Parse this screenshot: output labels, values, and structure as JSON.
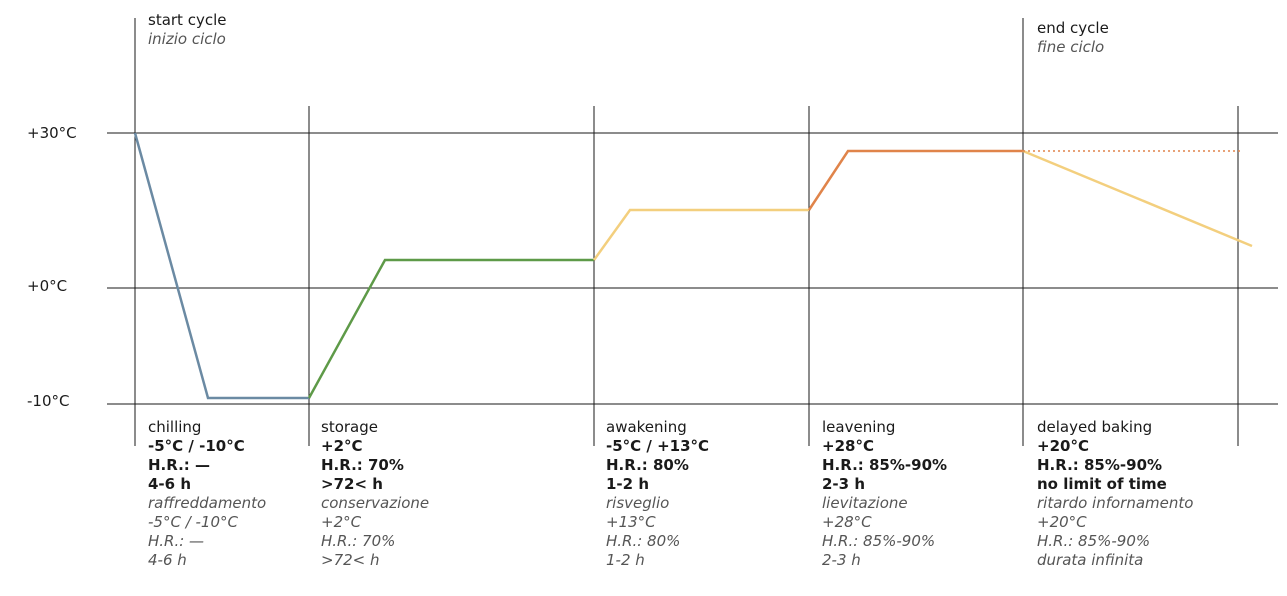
{
  "markers": {
    "start": {
      "title": "start cycle",
      "subtitle": "inizio ciclo"
    },
    "end": {
      "title": "end cycle",
      "subtitle": "fine ciclo"
    }
  },
  "y_axis": {
    "labels": [
      "+30°C",
      "+0°C",
      "-10°C"
    ]
  },
  "phases": [
    {
      "name": "chilling",
      "temp": "-5°C / -10°C",
      "hr": "H.R.: —",
      "time": "4-6 h",
      "it_name": "raffreddamento",
      "it_temp": "-5°C / -10°C",
      "it_hr": "H.R.: —",
      "it_time": "4-6 h",
      "color": "#6b8aa3"
    },
    {
      "name": "storage",
      "temp": "+2°C",
      "hr": "H.R.: 70%",
      "time": ">72< h",
      "it_name": "conservazione",
      "it_temp": "+2°C",
      "it_hr": "H.R.: 70%",
      "it_time": ">72< h",
      "color": "#5e9a48"
    },
    {
      "name": "awakening",
      "temp": "-5°C / +13°C",
      "hr": "H.R.: 80%",
      "time": "1-2 h",
      "it_name": "risveglio",
      "it_temp": "+13°C",
      "it_hr": "H.R.: 80%",
      "it_time": "1-2 h",
      "color": "#f3cf7e"
    },
    {
      "name": "leavening",
      "temp": "+28°C",
      "hr": "H.R.: 85%-90%",
      "time": "2-3 h",
      "it_name": "lievitazione",
      "it_temp": "+28°C",
      "it_hr": "H.R.: 85%-90%",
      "it_time": "2-3 h",
      "color": "#e0844a"
    },
    {
      "name": "delayed baking",
      "temp": "+20°C",
      "hr": "H.R.: 85%-90%",
      "time": "no limit of time",
      "it_name": "ritardo infornamento",
      "it_temp": "+20°C",
      "it_hr": "H.R.: 85%-90%",
      "it_time": "durata infinita",
      "color": "#f3cf7e"
    }
  ],
  "colors": {
    "axis": "#1a1a1a",
    "dotted": "#e0844a"
  }
}
